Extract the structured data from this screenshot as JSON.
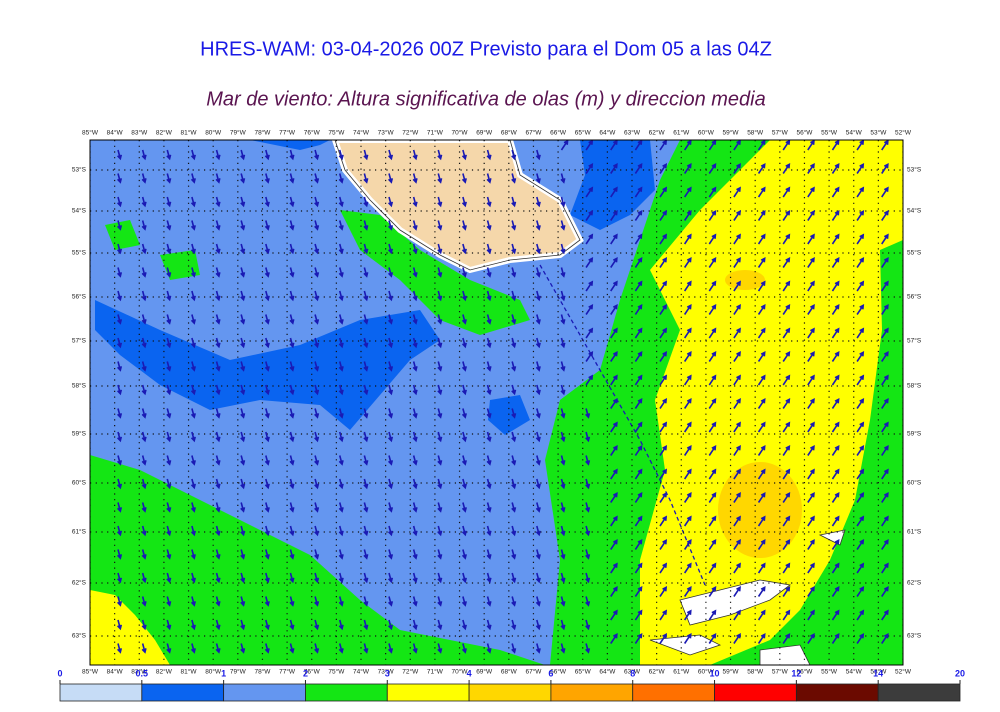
{
  "title": "HRES-WAM: 03-04-2026 00Z Previsto para el Dom 05 a las 04Z",
  "subtitle": "Mar de viento: Altura significativa de olas (m) y direccion media",
  "lon_labels": [
    "85°W",
    "84°W",
    "83°W",
    "82°W",
    "81°W",
    "80°W",
    "79°W",
    "78°W",
    "77°W",
    "76°W",
    "75°W",
    "74°W",
    "73°W",
    "72°W",
    "71°W",
    "70°W",
    "69°W",
    "68°W",
    "67°W",
    "66°W",
    "65°W",
    "64°W",
    "63°W",
    "62°W",
    "61°W",
    "60°W",
    "59°W",
    "58°W",
    "57°W",
    "56°W",
    "55°W",
    "54°W",
    "53°W",
    "52°W"
  ],
  "lat_labels": [
    "53°S",
    "54°S",
    "55°S",
    "56°S",
    "57°S",
    "58°S",
    "59°S",
    "60°S",
    "61°S",
    "62°S",
    "63°S"
  ],
  "colorbar": {
    "ticks": [
      0,
      0.5,
      1,
      2,
      3,
      4,
      6,
      8,
      10,
      12,
      14,
      20
    ],
    "colors": [
      "#c6dcf6",
      "#0a64f0",
      "#6496f0",
      "#14e614",
      "#ffff00",
      "#ffd700",
      "#ffa500",
      "#ff7000",
      "#ff0000",
      "#6b0a00",
      "#3c3c3c"
    ]
  }
}
